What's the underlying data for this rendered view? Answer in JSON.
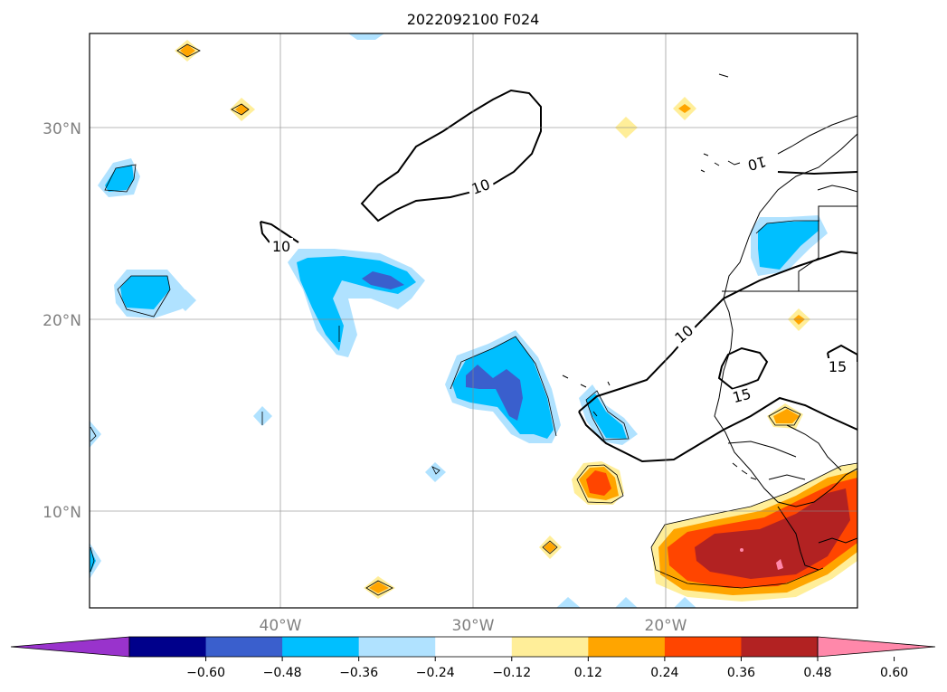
{
  "title": "2022092100 F024",
  "lat_labels": [
    "30°N",
    "20°N",
    "10°N"
  ],
  "lon_labels": [
    "40°W",
    "30°W",
    "20°W"
  ],
  "contour_labels": [
    "10",
    "10",
    "10",
    "10",
    "15",
    "15"
  ],
  "colorbar": {
    "ticks": [
      "−0.60",
      "−0.48",
      "−0.36",
      "−0.24",
      "−0.12",
      "0.12",
      "0.24",
      "0.36",
      "0.48",
      "0.60"
    ],
    "colors": [
      "#9933cc",
      "#00008b",
      "#3a5fcd",
      "#00bfff",
      "#b0e2ff",
      "#ffffff",
      "#ffee99",
      "#ffa500",
      "#ff4500",
      "#b22222",
      "#ff88aa"
    ]
  }
}
